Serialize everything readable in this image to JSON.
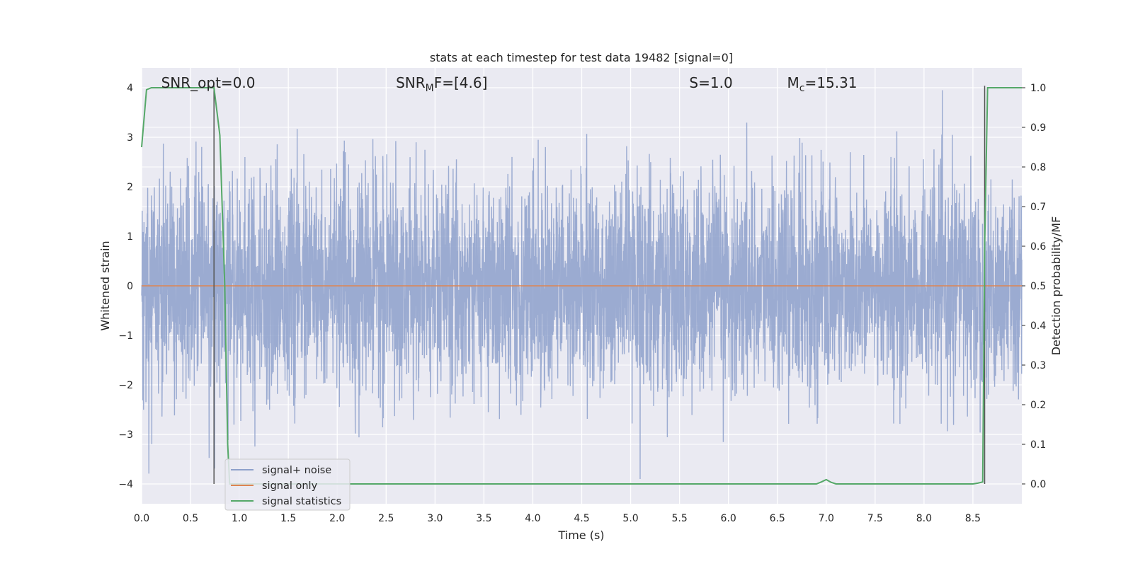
{
  "chart_data": {
    "type": "line",
    "title": "stats at each timestep for test data 19482 [signal=0]",
    "xlabel": "Time (s)",
    "ylabel": "Whitened strain",
    "ylabel_right": "Detection probability/MF",
    "xlim": [
      0,
      9
    ],
    "ylim": [
      -4.4,
      4.4
    ],
    "ylim_right": [
      -0.05,
      1.05
    ],
    "x_ticks": [
      "0.0",
      "0.5",
      "1.0",
      "1.5",
      "2.0",
      "2.5",
      "3.0",
      "3.5",
      "4.0",
      "4.5",
      "5.0",
      "5.5",
      "6.0",
      "6.5",
      "7.0",
      "7.5",
      "8.0",
      "8.5"
    ],
    "y_ticks_left": [
      "4",
      "3",
      "2",
      "1",
      "0",
      "−1",
      "−2",
      "−3",
      "−4"
    ],
    "y_ticks_right": [
      "1.0",
      "0.9",
      "0.8",
      "0.7",
      "0.6",
      "0.5",
      "0.4",
      "0.3",
      "0.2",
      "0.1",
      "0.0"
    ],
    "grid": true,
    "legend_position": "lower-left",
    "legend": [
      {
        "label": "signal+ noise",
        "color": "#8da0cb"
      },
      {
        "label": "signal only",
        "color": "#dd8452"
      },
      {
        "label": "signal statistics",
        "color": "#55a868"
      }
    ],
    "annotations": [
      {
        "prefix": "SNR_opt=0.0",
        "sub": "",
        "suffix": "",
        "x": 0.2,
        "y": 4.1
      },
      {
        "prefix": "SNR",
        "sub": "M",
        "suffix": "F=[4.6]",
        "x": 2.6,
        "y": 4.1
      },
      {
        "prefix": "S",
        "sub": "",
        "suffix": "=1.0",
        "x": 5.6,
        "y": 4.1
      },
      {
        "prefix": "M",
        "sub": "c",
        "suffix": "=15.31",
        "x": 6.6,
        "y": 4.1
      }
    ],
    "vertical_lines": [
      0.74,
      8.62
    ],
    "series": [
      {
        "name": "signal+ noise",
        "type": "noise",
        "n_points": 4500,
        "approx_envelope": [
          -3.9,
          3.95
        ],
        "color": "#8da0cb"
      },
      {
        "name": "signal only",
        "x": [
          0,
          9
        ],
        "y": [
          0,
          0
        ],
        "color": "#dd8452"
      },
      {
        "name": "signal statistics",
        "axis": "right",
        "color": "#55a868",
        "x": [
          0,
          0.05,
          0.1,
          0.15,
          0.5,
          0.7,
          0.74,
          0.8,
          0.85,
          0.88,
          0.9,
          1.0,
          6.9,
          6.95,
          7.0,
          7.05,
          7.1,
          7.15,
          8.5,
          8.55,
          8.6,
          8.62,
          8.65,
          8.7,
          8.75,
          9.0
        ],
        "y": [
          0.85,
          0.995,
          1.0,
          1.0,
          1.0,
          1.0,
          1.0,
          0.88,
          0.5,
          0.1,
          0.0,
          0.0,
          0.0,
          0.005,
          0.011,
          0.004,
          0.0,
          0.0,
          0.0,
          0.002,
          0.005,
          0.6,
          1.0,
          1.0,
          1.0,
          1.0
        ]
      }
    ]
  }
}
